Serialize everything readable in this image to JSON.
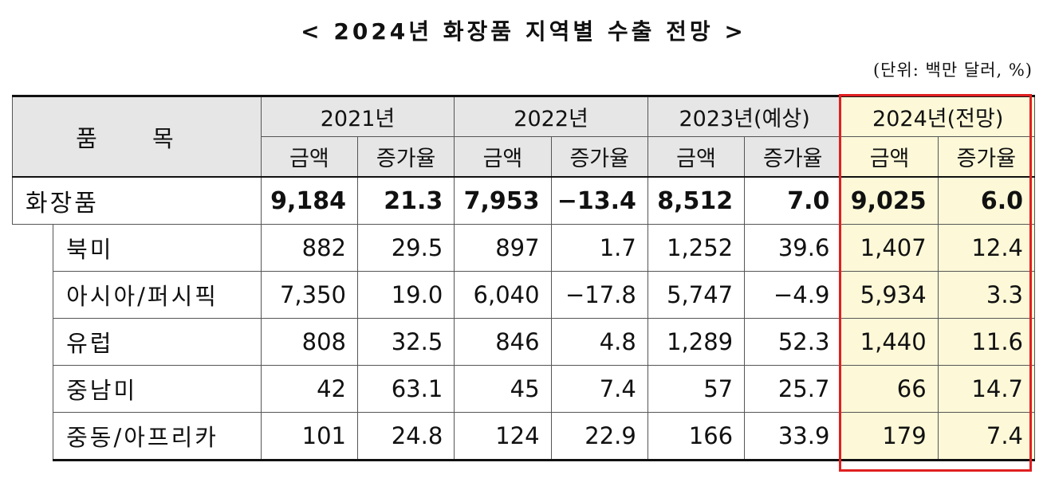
{
  "title": "< 2024년 화장품 지역별 수출 전망 >",
  "unit_note": "(단위: 백만 달러, %)",
  "header": {
    "item": "품 목",
    "years": [
      "2021년",
      "2022년",
      "2023년(예상)",
      "2024년(전망)"
    ],
    "sub": [
      "금액",
      "증가율"
    ]
  },
  "highlight_color": "#e02020",
  "rows": [
    {
      "label": "화장품",
      "values": [
        "9,184",
        "21.3",
        "7,953",
        "−13.4",
        "8,512",
        "7.0",
        "9,025",
        "6.0"
      ]
    },
    {
      "label": "북미",
      "values": [
        "882",
        "29.5",
        "897",
        "1.7",
        "1,252",
        "39.6",
        "1,407",
        "12.4"
      ]
    },
    {
      "label": "아시아/퍼시픽",
      "values": [
        "7,350",
        "19.0",
        "6,040",
        "−17.8",
        "5,747",
        "−4.9",
        "5,934",
        "3.3"
      ]
    },
    {
      "label": "유럽",
      "values": [
        "808",
        "32.5",
        "846",
        "4.8",
        "1,289",
        "52.3",
        "1,440",
        "11.6"
      ]
    },
    {
      "label": "중남미",
      "values": [
        "42",
        "63.1",
        "45",
        "7.4",
        "57",
        "25.7",
        "66",
        "14.7"
      ]
    },
    {
      "label": "중동/아프리카",
      "values": [
        "101",
        "24.8",
        "124",
        "22.9",
        "166",
        "33.9",
        "179",
        "7.4"
      ]
    }
  ]
}
